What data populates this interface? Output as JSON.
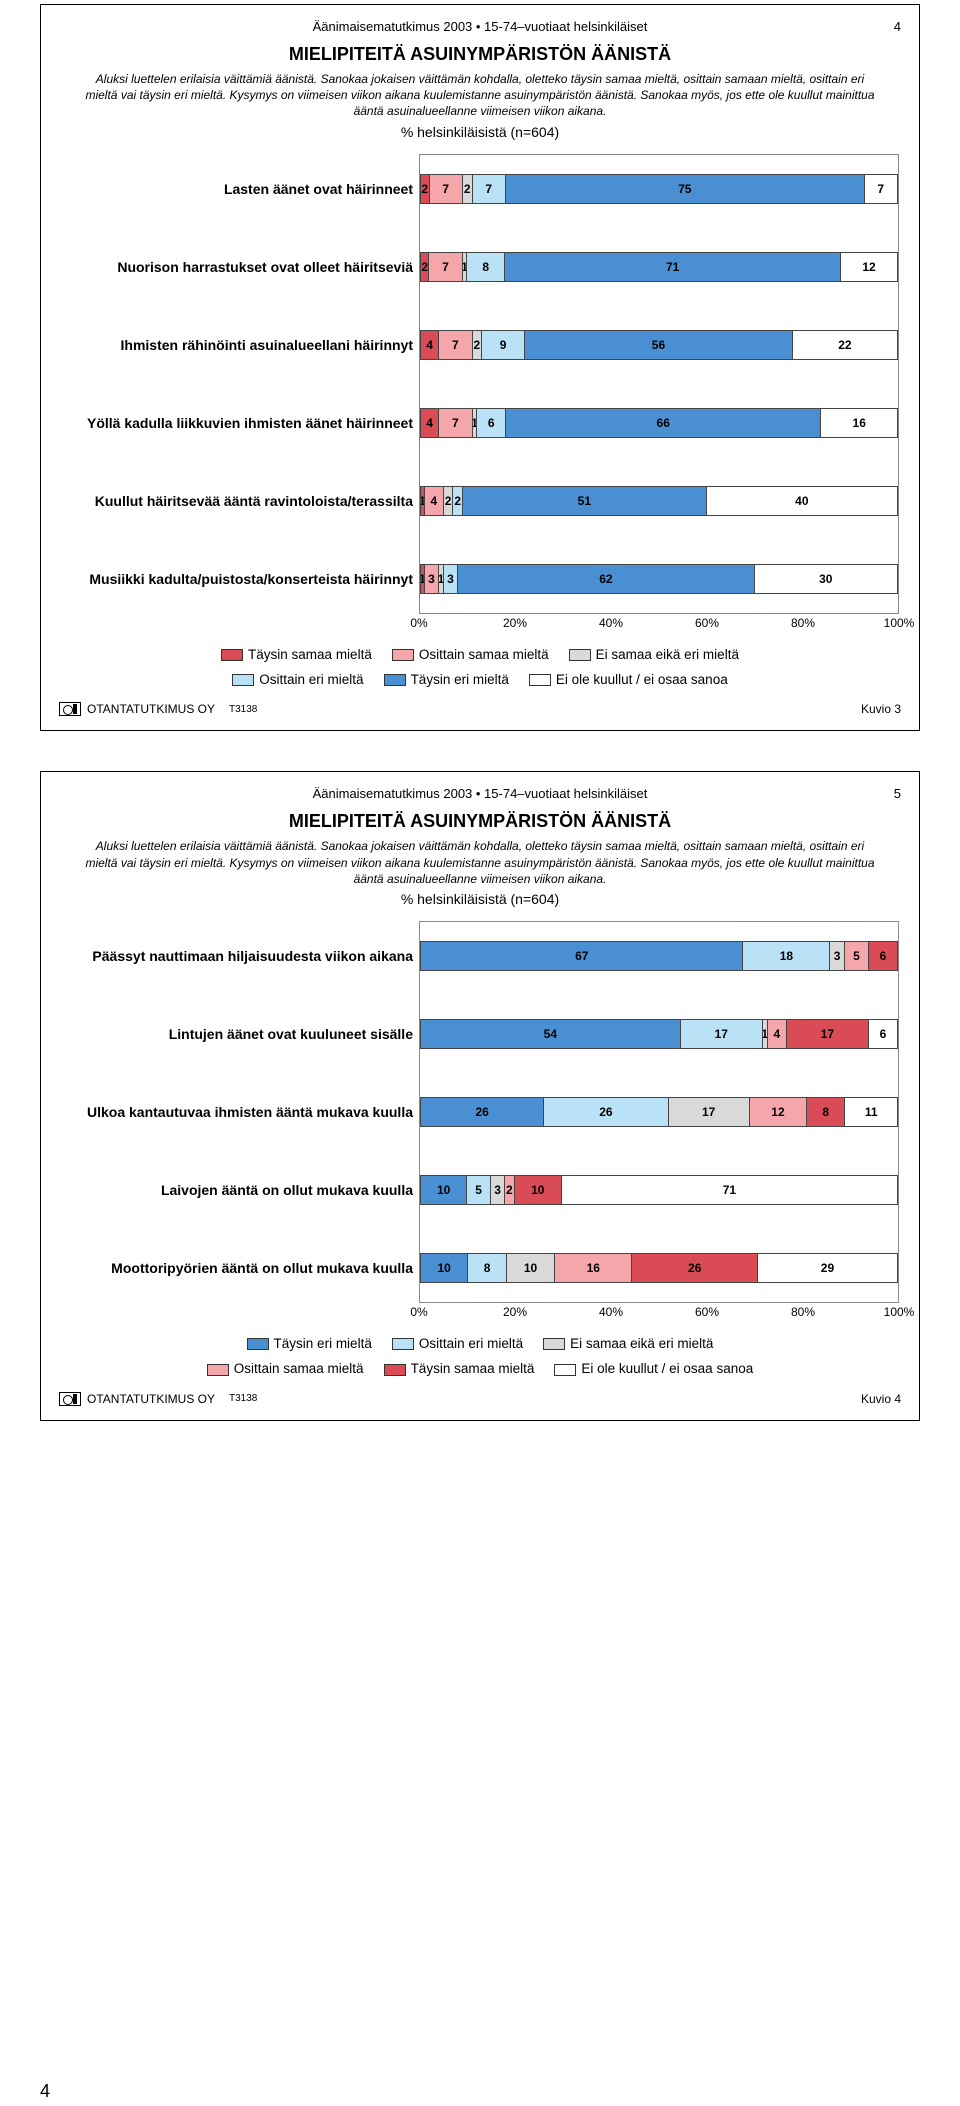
{
  "colors": {
    "taysin_samaa": "#d94b55",
    "osittain_samaa": "#f5a6ab",
    "ei_samaa_eika_eri": "#d9d9d9",
    "osittain_eri": "#b9e2f7",
    "taysin_eri": "#4a8fd1",
    "ei_kuullut": "#ffffff"
  },
  "legend_labels": {
    "taysin_samaa": "Täysin samaa mieltä",
    "osittain_samaa": "Osittain samaa mieltä",
    "ei_samaa_eika_eri": "Ei samaa eikä eri mieltä",
    "osittain_eri": "Osittain eri mieltä",
    "taysin_eri": "Täysin eri mieltä",
    "ei_kuullut": "Ei ole kuullut / ei osaa sanoa"
  },
  "xaxis": {
    "ticks": [
      "0%",
      "20%",
      "40%",
      "60%",
      "80%",
      "100%"
    ],
    "positions_pct": [
      0,
      20,
      40,
      60,
      80,
      100
    ]
  },
  "footer": {
    "company": "OTANTATUTKIMUS OY",
    "code": "T3138"
  },
  "page_num_bottom": "4",
  "figure3": {
    "header": "Äänimaisematutkimus 2003 • 15-74–vuotiaat helsinkiläiset",
    "page_num": "4",
    "title": "MIELIPITEITÄ ASUINYMPÄRISTÖN ÄÄNISTÄ",
    "desc": "Aluksi luettelen erilaisia väittämiä äänistä. Sanokaa jokaisen väittämän kohdalla, oletteko täysin samaa mieltä, osittain samaan mieltä, osittain eri mieltä vai täysin eri mieltä. Kysymys on viimeisen viikon aikana kuulemistanne asuinympäristön äänistä. Sanokaa myös, jos ette ole kuullut mainittua ääntä asuinalueellanne viimeisen viikon aikana.",
    "sub": "% helsinkiläisistä (n=604)",
    "kuvio": "Kuvio 3",
    "rows": [
      {
        "label": "Lasten äänet ovat häirinneet",
        "segs": [
          {
            "k": "taysin_samaa",
            "v": 2
          },
          {
            "k": "osittain_samaa",
            "v": 7
          },
          {
            "k": "ei_samaa_eika_eri",
            "v": 2
          },
          {
            "k": "osittain_eri",
            "v": 7
          },
          {
            "k": "taysin_eri",
            "v": 75
          },
          {
            "k": "ei_kuullut",
            "v": 7
          }
        ]
      },
      {
        "label": "Nuorison harrastukset ovat olleet häiritseviä",
        "segs": [
          {
            "k": "taysin_samaa",
            "v": 2
          },
          {
            "k": "osittain_samaa",
            "v": 7
          },
          {
            "k": "ei_samaa_eika_eri",
            "v": 1
          },
          {
            "k": "osittain_eri",
            "v": 8
          },
          {
            "k": "taysin_eri",
            "v": 71
          },
          {
            "k": "ei_kuullut",
            "v": 12
          }
        ]
      },
      {
        "label": "Ihmisten rähinöinti asuinalueellani häirinnyt",
        "segs": [
          {
            "k": "taysin_samaa",
            "v": 4
          },
          {
            "k": "osittain_samaa",
            "v": 7
          },
          {
            "k": "ei_samaa_eika_eri",
            "v": 2
          },
          {
            "k": "osittain_eri",
            "v": 9
          },
          {
            "k": "taysin_eri",
            "v": 56
          },
          {
            "k": "ei_kuullut",
            "v": 22
          }
        ]
      },
      {
        "label": "Yöllä kadulla liikkuvien ihmisten äänet häirinneet",
        "segs": [
          {
            "k": "taysin_samaa",
            "v": 4
          },
          {
            "k": "osittain_samaa",
            "v": 7
          },
          {
            "k": "ei_samaa_eika_eri",
            "v": 1
          },
          {
            "k": "osittain_eri",
            "v": 6
          },
          {
            "k": "taysin_eri",
            "v": 66
          },
          {
            "k": "ei_kuullut",
            "v": 16
          }
        ]
      },
      {
        "label": "Kuullut häiritsevää ääntä ravintoloista/terassilta",
        "segs": [
          {
            "k": "taysin_samaa",
            "v": 1
          },
          {
            "k": "osittain_samaa",
            "v": 4
          },
          {
            "k": "ei_samaa_eika_eri",
            "v": 2
          },
          {
            "k": "osittain_eri",
            "v": 2
          },
          {
            "k": "taysin_eri",
            "v": 51
          },
          {
            "k": "ei_kuullut",
            "v": 40
          }
        ]
      },
      {
        "label": "Musiikki kadulta/puistosta/konserteista häirinnyt",
        "segs": [
          {
            "k": "taysin_samaa",
            "v": 1
          },
          {
            "k": "osittain_samaa",
            "v": 3
          },
          {
            "k": "ei_samaa_eika_eri",
            "v": 1
          },
          {
            "k": "osittain_eri",
            "v": 3
          },
          {
            "k": "taysin_eri",
            "v": 62
          },
          {
            "k": "ei_kuullut",
            "v": 30
          }
        ]
      }
    ]
  },
  "figure4": {
    "header": "Äänimaisematutkimus 2003 • 15-74–vuotiaat helsinkiläiset",
    "page_num": "5",
    "title": "MIELIPITEITÄ ASUINYMPÄRISTÖN ÄÄNISTÄ",
    "desc": "Aluksi luettelen erilaisia väittämiä äänistä. Sanokaa jokaisen väittämän kohdalla, oletteko täysin samaa mieltä, osittain samaan mieltä, osittain eri mieltä vai täysin eri mieltä. Kysymys on viimeisen viikon aikana kuulemistanne asuinympäristön äänistä. Sanokaa myös, jos ette ole kuullut mainittua ääntä asuinalueellanne viimeisen viikon aikana.",
    "sub": "% helsinkiläisistä (n=604)",
    "kuvio": "Kuvio 4",
    "legend_order": [
      "taysin_eri",
      "osittain_eri",
      "ei_samaa_eika_eri",
      "osittain_samaa",
      "taysin_samaa",
      "ei_kuullut"
    ],
    "rows": [
      {
        "label": "Päässyt nauttimaan hiljaisuudesta viikon aikana",
        "segs": [
          {
            "k": "taysin_eri",
            "v": 67
          },
          {
            "k": "osittain_eri",
            "v": 18
          },
          {
            "k": "ei_samaa_eika_eri",
            "v": 3
          },
          {
            "k": "osittain_samaa",
            "v": 5
          },
          {
            "k": "taysin_samaa",
            "v": 6
          }
        ]
      },
      {
        "label": "Lintujen äänet ovat kuuluneet sisälle",
        "segs": [
          {
            "k": "taysin_eri",
            "v": 54
          },
          {
            "k": "osittain_eri",
            "v": 17
          },
          {
            "k": "ei_samaa_eika_eri",
            "v": 1
          },
          {
            "k": "osittain_samaa",
            "v": 4
          },
          {
            "k": "taysin_samaa",
            "v": 17
          },
          {
            "k": "ei_kuullut",
            "v": 6
          }
        ]
      },
      {
        "label": "Ulkoa kantautuvaa ihmisten ääntä mukava kuulla",
        "segs": [
          {
            "k": "taysin_eri",
            "v": 26
          },
          {
            "k": "osittain_eri",
            "v": 26
          },
          {
            "k": "ei_samaa_eika_eri",
            "v": 17
          },
          {
            "k": "osittain_samaa",
            "v": 12
          },
          {
            "k": "taysin_samaa",
            "v": 8
          },
          {
            "k": "ei_kuullut",
            "v": 11
          }
        ]
      },
      {
        "label": "Laivojen ääntä on ollut mukava kuulla",
        "segs": [
          {
            "k": "taysin_eri",
            "v": 10
          },
          {
            "k": "osittain_eri",
            "v": 5
          },
          {
            "k": "ei_samaa_eika_eri",
            "v": 3
          },
          {
            "k": "osittain_samaa",
            "v": 2
          },
          {
            "k": "taysin_samaa",
            "v": 10
          },
          {
            "k": "ei_kuullut",
            "v": 71
          }
        ]
      },
      {
        "label": "Moottoripyörien ääntä on ollut mukava kuulla",
        "segs": [
          {
            "k": "taysin_eri",
            "v": 10
          },
          {
            "k": "osittain_eri",
            "v": 8
          },
          {
            "k": "ei_samaa_eika_eri",
            "v": 10
          },
          {
            "k": "osittain_samaa",
            "v": 16
          },
          {
            "k": "taysin_samaa",
            "v": 26
          },
          {
            "k": "ei_kuullut",
            "v": 29
          }
        ]
      }
    ]
  }
}
